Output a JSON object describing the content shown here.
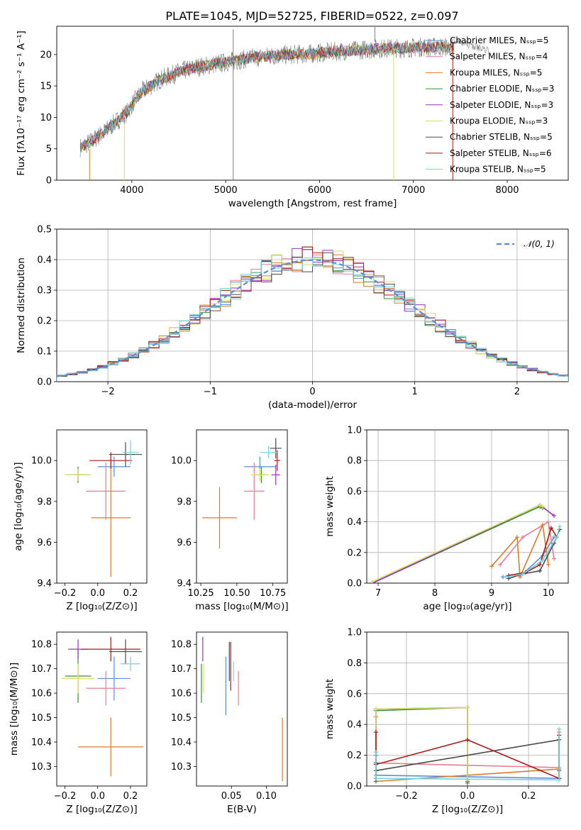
{
  "colors": {
    "Chabrier MILES": "#5b8ed9",
    "Salpeter MILES": "#e87c8f",
    "Kroupa MILES": "#e07b24",
    "Chabrier ELODIE": "#3a8f3a",
    "Salpeter ELODIE": "#9b30c4",
    "Kroupa ELODIE": "#d8e060",
    "Chabrier STELIB": "#4a4a4a",
    "Salpeter STELIB": "#b01818",
    "Kroupa STELIB": "#6fd5e0",
    "gauss": "#5b8ed9",
    "spec_gray": "#808080"
  },
  "chart_data": [
    {
      "id": "spectrum",
      "type": "line",
      "title": "PLATE=1045, MJD=52725, FIBERID=0522, z=0.097",
      "xlabel": "wavelength [Angstrom, rest frame]",
      "ylabel": "Flux [fλ10⁻¹⁷ erg cm⁻² s⁻¹ A⁻¹]",
      "xlim": [
        3200,
        8650
      ],
      "ylim": [
        0,
        24.5
      ],
      "xticks": [
        "4000",
        "5000",
        "6000",
        "7000",
        "8000"
      ],
      "yticks": [
        "0",
        "5",
        "10",
        "15",
        "20"
      ],
      "legend": [
        "Chabrier MILES, Nₛₛₚ=5",
        "Salpeter MILES, Nₛₛₚ=4",
        "Kroupa MILES, Nₛₛₚ=5",
        "Chabrier ELODIE, Nₛₛₚ=3",
        "Salpeter ELODIE, Nₛₛₚ=3",
        "Kroupa ELODIE, Nₛₛₚ=3",
        "Chabrier STELIB, Nₛₛₚ=5",
        "Salpeter STELIB, Nₛₛₚ=6",
        "Kroupa STELIB, Nₛₛₚ=5"
      ],
      "legend_position": "right",
      "continuum": {
        "x": [
          3450,
          3550,
          3700,
          3850,
          3950,
          4000,
          4100,
          4300,
          4500,
          4700,
          4900,
          5100,
          5300,
          5500,
          5700,
          5900,
          6100,
          6300,
          6500,
          6700,
          6900,
          7100,
          7300
        ],
        "y": [
          5.2,
          6.0,
          7.6,
          9.5,
          10.8,
          12.0,
          14.0,
          16.0,
          17.2,
          18.0,
          18.5,
          19.0,
          19.5,
          19.8,
          20.0,
          20.1,
          20.4,
          20.6,
          20.8,
          21.0,
          21.0,
          21.2,
          21.2
        ]
      },
      "spikes": [
        {
          "x": 5080,
          "y": [
            0,
            24
          ]
        },
        {
          "x": 6590,
          "y": [
            24.5,
            22
          ]
        },
        {
          "x": 6790,
          "y": [
            0,
            21
          ]
        },
        {
          "x": 7420,
          "y": [
            0,
            22
          ]
        },
        {
          "x": 3920,
          "y": [
            0,
            9
          ]
        },
        {
          "x": 3550,
          "y": [
            0,
            5
          ]
        }
      ]
    },
    {
      "id": "residuals",
      "type": "area",
      "xlabel": "(data-model)/error",
      "ylabel": "Normed distribution",
      "xlim": [
        -2.5,
        2.5
      ],
      "ylim": [
        0,
        0.5
      ],
      "xticks": [
        "−2",
        "−1",
        "0",
        "1",
        "2"
      ],
      "yticks": [
        "0.0",
        "0.1",
        "0.2",
        "0.3",
        "0.4",
        "0.5"
      ],
      "gauss_label": "𝒩(0, 1)",
      "legend_position": "top-right",
      "bin_width": 0.1,
      "grid": true
    },
    {
      "id": "age_vs_Z",
      "type": "scatter",
      "xlabel": "Z [log₁₀(Z/Z⊙)]",
      "ylabel": "age  [log₁₀(age/yr)]",
      "xlim": [
        -0.25,
        0.3
      ],
      "ylim": [
        9.4,
        10.15
      ],
      "xticks": [
        -0.2,
        0.0,
        0.2
      ],
      "xtick_labels": [
        "−0.2",
        "0.0",
        "0.2"
      ],
      "yticks": [
        9.4,
        9.6,
        9.8,
        10.0
      ],
      "ytick_labels": [
        "9.4",
        "9.6",
        "9.8",
        "10.0"
      ],
      "points": [
        {
          "series": "Chabrier MILES",
          "x": 0.1,
          "xerr": 0.1,
          "y": 9.97,
          "yerr": 0.05
        },
        {
          "series": "Salpeter MILES",
          "x": 0.05,
          "xerr": 0.12,
          "y": 9.85,
          "yerr": 0.14
        },
        {
          "series": "Kroupa MILES",
          "x": 0.08,
          "xerr": 0.12,
          "y": 9.72,
          "yerr": 0.29
        },
        {
          "series": "Chabrier ELODIE",
          "x": -0.12,
          "xerr": 0.06,
          "y": 9.93,
          "yerr": 0.04
        },
        {
          "series": "Salpeter ELODIE",
          "x": -0.12,
          "xerr": 0.03,
          "y": 9.93,
          "yerr": 0.03
        },
        {
          "series": "Kroupa ELODIE",
          "x": -0.12,
          "xerr": 0.08,
          "y": 9.93,
          "yerr": 0.03
        },
        {
          "series": "Chabrier STELIB",
          "x": 0.17,
          "xerr": 0.1,
          "y": 10.03,
          "yerr": 0.06
        },
        {
          "series": "Salpeter STELIB",
          "x": 0.08,
          "xerr": 0.13,
          "y": 10.0,
          "yerr": 0.04
        },
        {
          "series": "Kroupa STELIB",
          "x": 0.2,
          "xerr": 0.05,
          "y": 10.04,
          "yerr": 0.06
        }
      ]
    },
    {
      "id": "age_vs_mass",
      "type": "scatter",
      "xlabel": "mass [log₁₀(M/M⊙)]",
      "ylabel": "",
      "xlim": [
        10.22,
        10.85
      ],
      "ylim": [
        9.4,
        10.15
      ],
      "xticks": [
        10.25,
        10.5,
        10.75
      ],
      "xtick_labels": [
        "10.25",
        "10.50",
        "10.75"
      ],
      "yticks": [
        9.4,
        9.6,
        9.8,
        10.0
      ],
      "ytick_labels": [
        "9.4",
        "9.6",
        "9.8",
        "10.0"
      ],
      "points": [
        {
          "series": "Chabrier MILES",
          "x": 10.66,
          "xerr": 0.11,
          "y": 9.97,
          "yerr": 0.05
        },
        {
          "series": "Salpeter MILES",
          "x": 10.62,
          "xerr": 0.07,
          "y": 9.85,
          "yerr": 0.14
        },
        {
          "series": "Kroupa MILES",
          "x": 10.38,
          "xerr": 0.12,
          "y": 9.72,
          "yerr": 0.15
        },
        {
          "series": "Chabrier ELODIE",
          "x": 10.67,
          "xerr": 0.04,
          "y": 9.93,
          "yerr": 0.04
        },
        {
          "series": "Salpeter ELODIE",
          "x": 10.77,
          "xerr": 0.03,
          "y": 9.93,
          "yerr": 0.05
        },
        {
          "series": "Kroupa ELODIE",
          "x": 10.66,
          "xerr": 0.06,
          "y": 9.93,
          "yerr": 0.03
        },
        {
          "series": "Chabrier STELIB",
          "x": 10.77,
          "xerr": 0.04,
          "y": 10.06,
          "yerr": 0.05
        },
        {
          "series": "Salpeter STELIB",
          "x": 10.78,
          "xerr": 0.02,
          "y": 10.0,
          "yerr": 0.05
        },
        {
          "series": "Kroupa STELIB",
          "x": 10.72,
          "xerr": 0.06,
          "y": 10.04,
          "yerr": 0.03
        }
      ]
    },
    {
      "id": "mw_vs_age",
      "type": "line",
      "xlabel": "age  [log₁₀(age/yr)]",
      "ylabel": "mass weight",
      "xlim": [
        6.8,
        10.35
      ],
      "ylim": [
        0,
        1
      ],
      "xticks": [
        7,
        8,
        9,
        10
      ],
      "xtick_labels": [
        "7",
        "8",
        "9",
        "10"
      ],
      "yticks": [
        0,
        0.2,
        0.4,
        0.6,
        0.8,
        1.0
      ],
      "ytick_labels": [
        "0.0",
        "0.2",
        "0.4",
        "0.6",
        "0.8",
        "1.0"
      ],
      "grid": true,
      "series": [
        {
          "name": "Chabrier MILES",
          "x": [
            9.2,
            9.55,
            9.9,
            10.1
          ],
          "y": [
            0.04,
            0.06,
            0.18,
            0.3
          ]
        },
        {
          "name": "Salpeter MILES",
          "x": [
            9.15,
            9.55,
            10.0,
            10.1
          ],
          "y": [
            0.12,
            0.3,
            0.4,
            0.16
          ]
        },
        {
          "name": "Kroupa MILES",
          "x": [
            9.0,
            9.45,
            9.5,
            9.9,
            10.0
          ],
          "y": [
            0.11,
            0.3,
            0.04,
            0.38,
            0.12
          ]
        },
        {
          "name": "Chabrier ELODIE",
          "x": [
            6.9,
            9.85,
            9.9
          ],
          "y": [
            0.0,
            0.5,
            0.49
          ]
        },
        {
          "name": "Salpeter ELODIE",
          "x": [
            6.9,
            9.85,
            10.1
          ],
          "y": [
            0.0,
            0.51,
            0.44
          ]
        },
        {
          "name": "Kroupa ELODIE",
          "x": [
            6.9,
            9.85,
            9.9
          ],
          "y": [
            0.01,
            0.51,
            0.5
          ]
        },
        {
          "name": "Chabrier STELIB",
          "x": [
            9.3,
            9.55,
            9.85,
            10.1,
            10.2
          ],
          "y": [
            0.03,
            0.06,
            0.08,
            0.26,
            0.35
          ]
        },
        {
          "name": "Salpeter STELIB",
          "x": [
            9.3,
            9.6,
            9.85,
            10.05,
            10.15
          ],
          "y": [
            0.05,
            0.07,
            0.12,
            0.36,
            0.3
          ]
        },
        {
          "name": "Kroupa STELIB",
          "x": [
            9.25,
            9.55,
            9.9,
            10.15,
            10.2
          ],
          "y": [
            0.04,
            0.06,
            0.15,
            0.3,
            0.37
          ]
        }
      ]
    },
    {
      "id": "mass_vs_Z",
      "type": "scatter",
      "xlabel": "Z [log₁₀(Z/Z⊙)]",
      "ylabel": "mass [log₁₀(M/M⊙)]",
      "xlim": [
        -0.25,
        0.3
      ],
      "ylim": [
        10.22,
        10.85
      ],
      "xticks": [
        -0.2,
        0.0,
        0.2
      ],
      "xtick_labels": [
        "−0.2",
        "0.0",
        "0.2"
      ],
      "yticks": [
        10.3,
        10.4,
        10.5,
        10.6,
        10.7,
        10.8
      ],
      "ytick_labels": [
        "10.3",
        "10.4",
        "10.5",
        "10.6",
        "10.7",
        "10.8"
      ],
      "points": [
        {
          "series": "Chabrier MILES",
          "x": 0.1,
          "xerr": 0.1,
          "y": 10.66,
          "yerr": 0.09
        },
        {
          "series": "Salpeter MILES",
          "x": 0.05,
          "xerr": 0.12,
          "y": 10.62,
          "yerr": 0.07
        },
        {
          "series": "Kroupa MILES",
          "x": 0.08,
          "xerr": 0.2,
          "y": 10.38,
          "yerr": 0.12
        },
        {
          "series": "Chabrier ELODIE",
          "x": -0.12,
          "xerr": 0.08,
          "y": 10.67,
          "yerr": 0.11
        },
        {
          "series": "Salpeter ELODIE",
          "x": -0.12,
          "xerr": 0.06,
          "y": 10.78,
          "yerr": 0.04
        },
        {
          "series": "Kroupa ELODIE",
          "x": -0.12,
          "xerr": 0.1,
          "y": 10.66,
          "yerr": 0.06
        },
        {
          "series": "Chabrier STELIB",
          "x": 0.17,
          "xerr": 0.1,
          "y": 10.77,
          "yerr": 0.05
        },
        {
          "series": "Salpeter STELIB",
          "x": 0.08,
          "xerr": 0.18,
          "y": 10.78,
          "yerr": 0.05
        },
        {
          "series": "Kroupa STELIB",
          "x": 0.2,
          "xerr": 0.06,
          "y": 10.72,
          "yerr": 0.03
        }
      ]
    },
    {
      "id": "mass_vs_ebv",
      "type": "scatter",
      "xlabel": "E(B-V)",
      "ylabel": "",
      "xlim": [
        0.0,
        0.13
      ],
      "ylim": [
        10.22,
        10.85
      ],
      "xticks": [
        0.05,
        0.1
      ],
      "xtick_labels": [
        "0.05",
        "0.10"
      ],
      "yticks": [
        10.3,
        10.4,
        10.5,
        10.6,
        10.7,
        10.8
      ],
      "ytick_labels": [
        "10.3",
        "10.4",
        "10.5",
        "10.6",
        "10.7",
        "10.8"
      ],
      "points": [
        {
          "series": "Chabrier MILES",
          "x": 0.042,
          "y": 10.63,
          "yerr": 0.12
        },
        {
          "series": "Salpeter MILES",
          "x": 0.06,
          "y": 10.62,
          "yerr": 0.07
        },
        {
          "series": "Kroupa MILES",
          "x": 0.123,
          "y": 10.37,
          "yerr": 0.13
        },
        {
          "series": "Chabrier ELODIE",
          "x": 0.007,
          "y": 10.64,
          "yerr": 0.08
        },
        {
          "series": "Salpeter ELODIE",
          "x": 0.009,
          "y": 10.78,
          "yerr": 0.05
        },
        {
          "series": "Kroupa ELODIE",
          "x": 0.01,
          "y": 10.66,
          "yerr": 0.06
        },
        {
          "series": "Chabrier STELIB",
          "x": 0.047,
          "y": 10.73,
          "yerr": 0.08
        },
        {
          "series": "Salpeter STELIB",
          "x": 0.049,
          "y": 10.71,
          "yerr": 0.1
        },
        {
          "series": "Kroupa STELIB",
          "x": 0.053,
          "y": 10.69,
          "yerr": 0.04
        }
      ]
    },
    {
      "id": "mw_vs_Z",
      "type": "line",
      "xlabel": "Z [log₁₀(Z/Z⊙)]",
      "ylabel": "mass weight",
      "xlim": [
        -0.33,
        0.33
      ],
      "ylim": [
        0,
        1
      ],
      "xticks": [
        -0.2,
        0.0,
        0.2
      ],
      "xtick_labels": [
        "−0.2",
        "0.0",
        "0.2"
      ],
      "yticks": [
        0,
        0.2,
        0.4,
        0.6,
        0.8,
        1.0
      ],
      "ytick_labels": [
        "0.0",
        "0.2",
        "0.4",
        "0.6",
        "0.8",
        "1.0"
      ],
      "grid": true,
      "series": [
        {
          "name": "Chabrier MILES",
          "x": [
            -0.3,
            -0.3,
            0.3,
            0.3
          ],
          "y": [
            0.2,
            0.07,
            0.05,
            0.3
          ]
        },
        {
          "name": "Salpeter MILES",
          "x": [
            -0.3,
            -0.3,
            0.3,
            0.3
          ],
          "y": [
            0.35,
            0.15,
            0.12,
            0.05
          ]
        },
        {
          "name": "Kroupa MILES",
          "x": [
            -0.3,
            -0.3,
            0.3,
            0.3
          ],
          "y": [
            0.45,
            0.03,
            0.11,
            0.35
          ]
        },
        {
          "name": "Chabrier ELODIE",
          "x": [
            -0.3,
            -0.3,
            0.0,
            0.0
          ],
          "y": [
            0.03,
            0.49,
            0.51,
            0.02
          ]
        },
        {
          "name": "Salpeter ELODIE",
          "x": [
            -0.3,
            -0.3,
            0.0,
            0.0
          ],
          "y": [
            0.05,
            0.5,
            0.51,
            0.03
          ]
        },
        {
          "name": "Kroupa ELODIE",
          "x": [
            -0.3,
            -0.3,
            0.0,
            0.0
          ],
          "y": [
            0.1,
            0.5,
            0.51,
            0.04
          ]
        },
        {
          "name": "Chabrier STELIB",
          "x": [
            -0.3,
            -0.3,
            0.3,
            0.3
          ],
          "y": [
            0.15,
            0.1,
            0.3,
            0.1
          ]
        },
        {
          "name": "Salpeter STELIB",
          "x": [
            -0.3,
            -0.3,
            0.0,
            0.3,
            0.3
          ],
          "y": [
            0.35,
            0.14,
            0.3,
            0.05,
            0.33
          ]
        },
        {
          "name": "Kroupa STELIB",
          "x": [
            -0.3,
            -0.3,
            0.3,
            0.3
          ],
          "y": [
            0.22,
            0.05,
            0.04,
            0.37
          ]
        }
      ]
    }
  ]
}
